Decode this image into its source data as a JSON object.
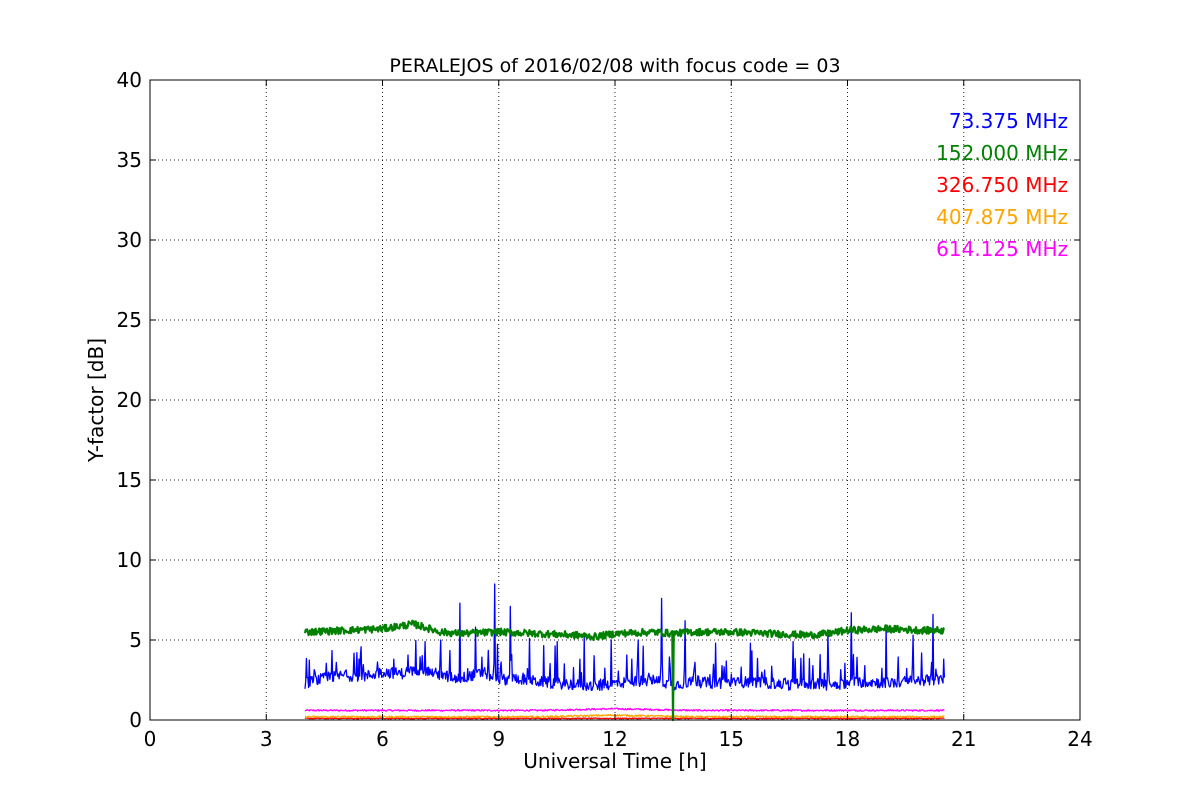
{
  "chart_data": {
    "type": "line",
    "title": "PERALEJOS of 2016/02/08 with focus code = 03",
    "xlabel": "Universal Time [h]",
    "ylabel": "Y-factor [dB]",
    "xlim": [
      0,
      24
    ],
    "ylim": [
      0,
      40
    ],
    "xticks": [
      0,
      3,
      6,
      9,
      12,
      15,
      18,
      21,
      24
    ],
    "yticks": [
      0,
      5,
      10,
      15,
      20,
      25,
      30,
      35,
      40
    ],
    "grid": true,
    "legend_placement": "top-right",
    "series": [
      {
        "name": "73.375 MHz",
        "color": "#0000ff",
        "x": [
          4.0,
          4.5,
          5.0,
          5.5,
          6.0,
          6.5,
          7.0,
          7.5,
          8.0,
          8.5,
          8.9,
          9.0,
          9.5,
          10.0,
          10.5,
          11.0,
          11.5,
          12.0,
          12.5,
          13.0,
          13.5,
          14.0,
          14.5,
          15.0,
          15.5,
          16.0,
          16.5,
          17.0,
          17.5,
          18.0,
          18.5,
          19.0,
          19.5,
          20.0,
          20.5
        ],
        "values": [
          2.3,
          2.6,
          2.8,
          2.7,
          3.0,
          2.9,
          3.2,
          2.8,
          2.6,
          2.9,
          2.7,
          2.5,
          2.6,
          2.4,
          2.3,
          2.2,
          2.1,
          2.3,
          2.4,
          2.5,
          2.2,
          2.4,
          2.3,
          2.3,
          2.4,
          2.3,
          2.2,
          2.3,
          2.2,
          2.3,
          2.4,
          2.3,
          2.4,
          2.5,
          2.5
        ],
        "spikes": [
          {
            "x": 4.8,
            "y": 3.6
          },
          {
            "x": 6.3,
            "y": 3.8
          },
          {
            "x": 7.1,
            "y": 4.9
          },
          {
            "x": 7.5,
            "y": 5.0
          },
          {
            "x": 8.0,
            "y": 7.3
          },
          {
            "x": 8.4,
            "y": 5.8
          },
          {
            "x": 8.9,
            "y": 8.5
          },
          {
            "x": 9.3,
            "y": 7.1
          },
          {
            "x": 9.8,
            "y": 5.1
          },
          {
            "x": 10.5,
            "y": 4.9
          },
          {
            "x": 11.2,
            "y": 5.2
          },
          {
            "x": 11.9,
            "y": 5.0
          },
          {
            "x": 12.6,
            "y": 5.0
          },
          {
            "x": 13.2,
            "y": 7.6
          },
          {
            "x": 13.8,
            "y": 6.2
          },
          {
            "x": 14.6,
            "y": 4.8
          },
          {
            "x": 15.5,
            "y": 4.8
          },
          {
            "x": 16.6,
            "y": 4.9
          },
          {
            "x": 17.5,
            "y": 5.5
          },
          {
            "x": 18.1,
            "y": 6.7
          },
          {
            "x": 19.0,
            "y": 5.9
          },
          {
            "x": 19.7,
            "y": 5.3
          },
          {
            "x": 20.2,
            "y": 6.6
          }
        ]
      },
      {
        "name": "152.000 MHz",
        "color": "#008000",
        "x": [
          4.0,
          5.0,
          6.0,
          6.8,
          7.5,
          8.0,
          9.0,
          10.0,
          11.0,
          11.5,
          12.0,
          13.0,
          13.5,
          14.0,
          15.0,
          16.0,
          17.0,
          17.5,
          18.0,
          19.0,
          20.0,
          20.5
        ],
        "values": [
          5.5,
          5.6,
          5.7,
          6.0,
          5.5,
          5.4,
          5.5,
          5.4,
          5.3,
          5.2,
          5.4,
          5.5,
          5.4,
          5.5,
          5.5,
          5.4,
          5.3,
          5.4,
          5.6,
          5.7,
          5.6,
          5.6
        ],
        "dip": {
          "x": 13.5,
          "y": 0.0
        }
      },
      {
        "name": "326.750 MHz",
        "color": "#ff0000",
        "x": [
          4.0,
          8.0,
          12.0,
          16.0,
          20.5
        ],
        "values": [
          0.1,
          0.1,
          0.1,
          0.1,
          0.1
        ]
      },
      {
        "name": "407.875 MHz",
        "color": "#ffa500",
        "x": [
          4.0,
          6.0,
          8.0,
          10.0,
          12.0,
          14.0,
          16.0,
          18.0,
          20.5
        ],
        "values": [
          0.2,
          0.2,
          0.2,
          0.2,
          0.3,
          0.2,
          0.2,
          0.2,
          0.2
        ]
      },
      {
        "name": "614.125 MHz",
        "color": "#ff00ff",
        "x": [
          4.0,
          6.0,
          8.0,
          10.0,
          12.0,
          14.0,
          16.0,
          18.0,
          20.5
        ],
        "values": [
          0.6,
          0.6,
          0.6,
          0.6,
          0.7,
          0.6,
          0.6,
          0.6,
          0.6
        ]
      }
    ]
  }
}
